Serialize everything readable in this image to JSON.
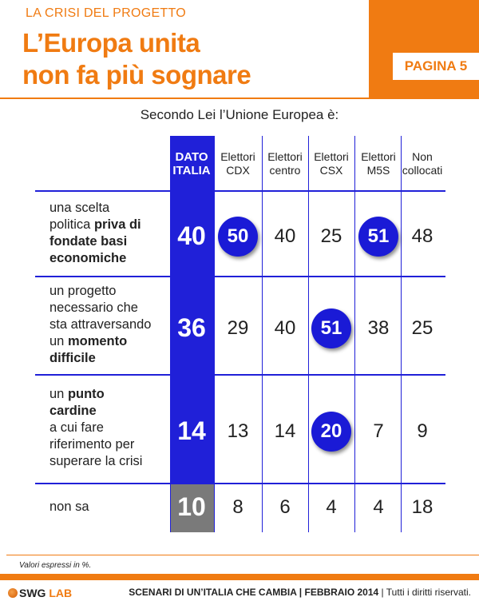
{
  "header": {
    "kicker": "LA CRISI DEL PROGETTO",
    "title_line1": "L’Europa unita",
    "title_line2": "non fa più sognare",
    "page_label": "PAGINA 5"
  },
  "question": "Secondo Lei l’Unione Europea è:",
  "colors": {
    "accent": "#f07b12",
    "table_blue": "#2020d8",
    "highlight_blue": "#1a1ad6",
    "gray": "#7a7a7a"
  },
  "chart_data": {
    "type": "table",
    "columns": [
      {
        "line1": "DATO",
        "line2": "ITALIA"
      },
      {
        "line1": "Elettori",
        "line2": "CDX"
      },
      {
        "line1": "Elettori",
        "line2": "centro"
      },
      {
        "line1": "Elettori",
        "line2": "CSX"
      },
      {
        "line1": "Elettori",
        "line2": "M5S"
      },
      {
        "line1": "Non",
        "line2": "collocati"
      }
    ],
    "rows": [
      {
        "label_parts": [
          {
            "text": "una scelta",
            "bold": false,
            "br": true
          },
          {
            "text": "politica ",
            "bold": false
          },
          {
            "text": "priva di",
            "bold": true,
            "br": true
          },
          {
            "text": "fondate basi",
            "bold": true,
            "br": true
          },
          {
            "text": "economiche",
            "bold": true
          }
        ],
        "values": [
          "40",
          "50",
          "40",
          "25",
          "51",
          "48"
        ],
        "highlighted": [
          false,
          true,
          false,
          false,
          true,
          false
        ]
      },
      {
        "label_parts": [
          {
            "text": "un progetto",
            "bold": false,
            "br": true
          },
          {
            "text": "necessario che",
            "bold": false,
            "br": true
          },
          {
            "text": "sta attraversando",
            "bold": false,
            "br": true
          },
          {
            "text": "un ",
            "bold": false
          },
          {
            "text": "momento",
            "bold": true,
            "br": true
          },
          {
            "text": "difficile",
            "bold": true
          }
        ],
        "values": [
          "36",
          "29",
          "40",
          "51",
          "38",
          "25"
        ],
        "highlighted": [
          false,
          false,
          false,
          true,
          false,
          false
        ]
      },
      {
        "label_parts": [
          {
            "text": "un ",
            "bold": false
          },
          {
            "text": "punto",
            "bold": true,
            "br": true
          },
          {
            "text": "cardine",
            "bold": true,
            "br": true
          },
          {
            "text": "a cui fare",
            "bold": false,
            "br": true
          },
          {
            "text": "riferimento per",
            "bold": false,
            "br": true
          },
          {
            "text": "superare la crisi",
            "bold": false
          }
        ],
        "values": [
          "14",
          "13",
          "14",
          "20",
          "7",
          "9"
        ],
        "highlighted": [
          false,
          false,
          false,
          true,
          false,
          false
        ]
      },
      {
        "label_parts": [
          {
            "text": "non sa",
            "bold": false
          }
        ],
        "values": [
          "10",
          "8",
          "6",
          "4",
          "4",
          "18"
        ],
        "highlighted": [
          false,
          false,
          false,
          false,
          false,
          false
        ]
      }
    ]
  },
  "footnote": "Valori espressi in %.",
  "footer": {
    "logo_text": "SWG",
    "logo_lab": "LAB",
    "text_bold": "SCENARI DI UN’ITALIA CHE CAMBIA | FEBBRAIO 2014",
    "text_rest": " | Tutti i diritti riservati."
  }
}
